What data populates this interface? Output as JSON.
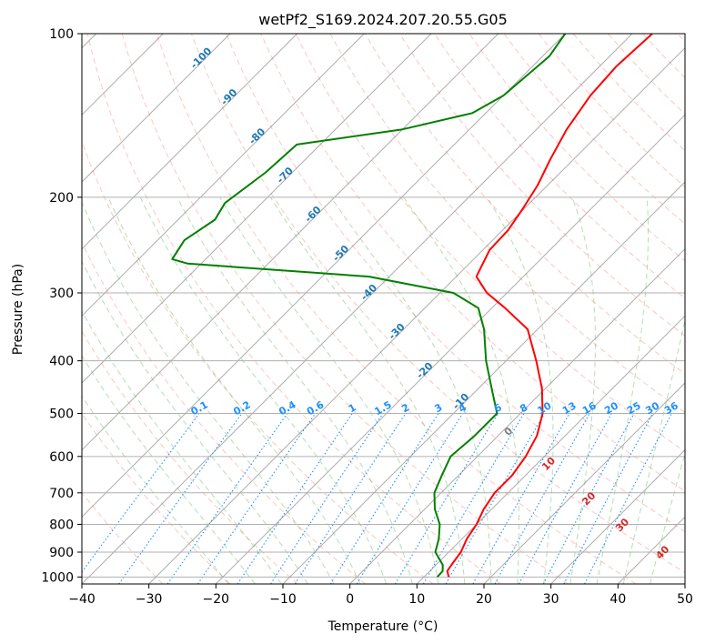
{
  "chart_data": {
    "type": "line",
    "title": "wetPf2_S169.2024.207.20.55.G05",
    "xlabel": "Temperature (°C)",
    "ylabel": "Pressure (hPa)",
    "xlim": [
      -40,
      50
    ],
    "ylim": [
      1030,
      100
    ],
    "y_scale": "log",
    "grid": true,
    "x_ticks": [
      -40,
      -30,
      -20,
      -10,
      0,
      10,
      20,
      30,
      40,
      50
    ],
    "x_tick_labels": [
      "−40",
      "−30",
      "−20",
      "−10",
      "0",
      "10",
      "20",
      "30",
      "40",
      "50"
    ],
    "y_ticks": [
      100,
      200,
      300,
      400,
      500,
      600,
      700,
      800,
      900,
      1000
    ],
    "y_tick_labels": [
      "100",
      "200",
      "300",
      "400",
      "500",
      "600",
      "700",
      "800",
      "900",
      "1000"
    ],
    "series": [
      {
        "color": "#ff0000",
        "points": [
          [
            1000,
            13.7
          ],
          [
            975,
            12.6
          ],
          [
            950,
            12.3
          ],
          [
            900,
            11.8
          ],
          [
            850,
            10.7
          ],
          [
            800,
            10.0
          ],
          [
            750,
            8.8
          ],
          [
            700,
            8.0
          ],
          [
            650,
            8.0
          ],
          [
            600,
            7.2
          ],
          [
            550,
            5.8
          ],
          [
            500,
            3.3
          ],
          [
            450,
            -0.5
          ],
          [
            400,
            -5.5
          ],
          [
            350,
            -11.5
          ],
          [
            320,
            -18.0
          ],
          [
            300,
            -23.0
          ],
          [
            280,
            -27.0
          ],
          [
            250,
            -29.0
          ],
          [
            230,
            -29.2
          ],
          [
            210,
            -30.2
          ],
          [
            190,
            -31.5
          ],
          [
            170,
            -33.5
          ],
          [
            150,
            -35.5
          ],
          [
            130,
            -37.0
          ],
          [
            115,
            -37.5
          ],
          [
            100,
            -37.0
          ]
        ]
      },
      {
        "color": "#008000",
        "points": [
          [
            1000,
            12.0
          ],
          [
            975,
            11.9
          ],
          [
            950,
            11.0
          ],
          [
            900,
            8.0
          ],
          [
            850,
            6.5
          ],
          [
            800,
            4.5
          ],
          [
            750,
            1.5
          ],
          [
            700,
            -1.0
          ],
          [
            650,
            -2.5
          ],
          [
            600,
            -4.0
          ],
          [
            550,
            -3.5
          ],
          [
            500,
            -3.5
          ],
          [
            450,
            -8.0
          ],
          [
            400,
            -13.0
          ],
          [
            350,
            -18.0
          ],
          [
            320,
            -22.0
          ],
          [
            300,
            -28.0
          ],
          [
            280,
            -43.0
          ],
          [
            265,
            -72.0
          ],
          [
            260,
            -75.0
          ],
          [
            240,
            -76.0
          ],
          [
            220,
            -74.5
          ],
          [
            205,
            -75.5
          ],
          [
            180,
            -74.0
          ],
          [
            160,
            -73.5
          ],
          [
            150,
            -60.0
          ],
          [
            140,
            -52.0
          ],
          [
            130,
            -50.0
          ],
          [
            110,
            -49.0
          ],
          [
            100,
            -50.0
          ]
        ]
      }
    ],
    "isotherm_labels": [
      "-100",
      "-90",
      "-80",
      "-70",
      "-60",
      "-50",
      "-40",
      "-30",
      "-20",
      "-10"
    ],
    "isotherm_values": [
      -100,
      -90,
      -80,
      -70,
      -60,
      -50,
      -40,
      -30,
      -20,
      -10
    ],
    "mixing_ratio_labels": [
      "0.1",
      "0.2",
      "0.4",
      "0.6",
      "1",
      "1.5",
      "2",
      "3",
      "4",
      "6",
      "8",
      "10",
      "13",
      "16",
      "20",
      "25",
      "30",
      "36"
    ],
    "mixing_ratio_values": [
      0.1,
      0.2,
      0.4,
      0.6,
      1,
      1.5,
      2,
      3,
      4,
      6,
      8,
      10,
      13,
      16,
      20,
      25,
      30,
      36
    ],
    "moist_adiabat_labels": [
      "0",
      "10",
      "20",
      "30",
      "40"
    ],
    "moist_adiabat_values": [
      0,
      10,
      20,
      30,
      40
    ],
    "colors": {
      "temperature": "#ff0000",
      "dewpoint": "#008000",
      "isotherm_label": "#1f77b4",
      "mixing_ratio": "#1e90ff",
      "moist_adiabat_label": "#d62728",
      "dry_adiabat": "#fa8072",
      "moist_adiabat": "#2ca02c",
      "isotherm_line": "#808080"
    }
  }
}
